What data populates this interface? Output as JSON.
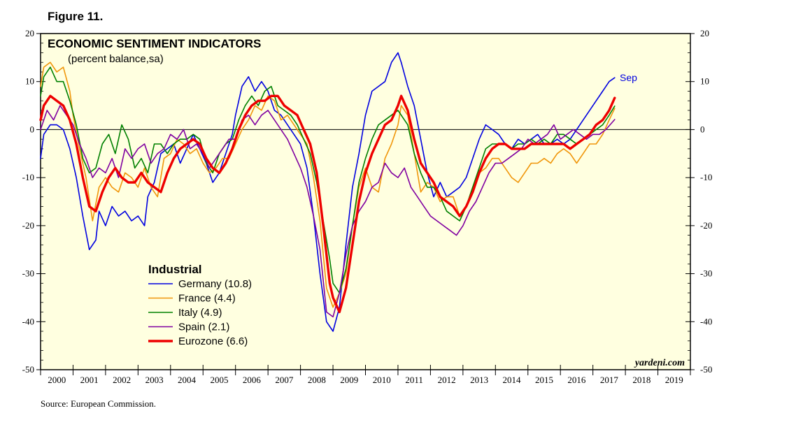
{
  "figure_label": "Figure 11.",
  "source": "Source: European Commission.",
  "chart_data": {
    "type": "line",
    "title": "ECONOMIC SENTIMENT INDICATORS",
    "subtitle": "(percent balance,sa)",
    "watermark": "yardeni.com",
    "end_label": "Sep",
    "legend_title": "Industrial",
    "legend_position": "lower-left",
    "background_color": "#ffffe0",
    "zero_line": true,
    "ylim": [
      -50,
      20
    ],
    "yticks": [
      20,
      10,
      0,
      -10,
      -20,
      -30,
      -40,
      -50
    ],
    "ytick_labels": [
      "20",
      "10",
      "0",
      "-10",
      "-20",
      "-30",
      "-40",
      "-50"
    ],
    "xlim": [
      2000,
      2020
    ],
    "xtick_labels": [
      "2000",
      "2001",
      "2002",
      "2003",
      "2004",
      "2005",
      "2006",
      "2007",
      "2008",
      "2009",
      "2010",
      "2011",
      "2012",
      "2013",
      "2014",
      "2015",
      "2016",
      "2017",
      "2018",
      "2019"
    ],
    "series": [
      {
        "name": "Germany (10.8)",
        "color": "#0000e0",
        "width": 1.6,
        "x": [
          2000.0,
          2000.1,
          2000.3,
          2000.5,
          2000.7,
          2000.9,
          2001.1,
          2001.3,
          2001.5,
          2001.7,
          2001.8,
          2002.0,
          2002.2,
          2002.4,
          2002.6,
          2002.8,
          2003.0,
          2003.2,
          2003.3,
          2003.5,
          2003.7,
          2003.9,
          2004.1,
          2004.3,
          2004.5,
          2004.7,
          2004.9,
          2005.1,
          2005.3,
          2005.5,
          2005.7,
          2005.9,
          2006.0,
          2006.2,
          2006.4,
          2006.6,
          2006.8,
          2007.0,
          2007.2,
          2007.4,
          2007.6,
          2007.8,
          2008.0,
          2008.2,
          2008.4,
          2008.6,
          2008.8,
          2009.0,
          2009.2,
          2009.4,
          2009.6,
          2009.8,
          2010.0,
          2010.2,
          2010.4,
          2010.6,
          2010.8,
          2011.0,
          2011.1,
          2011.3,
          2011.5,
          2011.7,
          2011.9,
          2012.1,
          2012.3,
          2012.5,
          2012.7,
          2012.9,
          2013.1,
          2013.3,
          2013.5,
          2013.7,
          2013.9,
          2014.1,
          2014.3,
          2014.5,
          2014.7,
          2014.9,
          2015.1,
          2015.3,
          2015.5,
          2015.7,
          2015.9,
          2016.1,
          2016.3,
          2016.5,
          2016.7,
          2016.9,
          2017.1,
          2017.3,
          2017.5,
          2017.67
        ],
        "y": [
          -6,
          -1,
          1,
          1,
          0,
          -4,
          -10,
          -18,
          -25,
          -23,
          -17,
          -20,
          -16,
          -18,
          -17,
          -19,
          -18,
          -20,
          -14,
          -11,
          -5,
          -4,
          -3,
          -7,
          -4,
          -1,
          -4,
          -7,
          -11,
          -9,
          -5,
          -1,
          3,
          9,
          11,
          8,
          10,
          8,
          4,
          3,
          1,
          -1,
          -3,
          -8,
          -18,
          -30,
          -40,
          -42,
          -37,
          -24,
          -12,
          -5,
          3,
          8,
          9,
          10,
          14,
          16,
          14,
          9,
          5,
          -2,
          -9,
          -14,
          -11,
          -14,
          -13,
          -12,
          -10,
          -6,
          -2,
          1,
          0,
          -1,
          -3,
          -4,
          -2,
          -3,
          -2,
          -1,
          -3,
          -3,
          -2,
          -3,
          -2,
          0,
          2,
          4,
          6,
          8,
          10,
          10.8
        ]
      },
      {
        "name": "France (4.4)",
        "color": "#f0960a",
        "width": 1.6,
        "x": [
          2000.0,
          2000.1,
          2000.3,
          2000.5,
          2000.7,
          2000.9,
          2001.0,
          2001.2,
          2001.4,
          2001.6,
          2001.8,
          2002.0,
          2002.2,
          2002.4,
          2002.6,
          2002.8,
          2003.0,
          2003.2,
          2003.4,
          2003.6,
          2003.8,
          2004.0,
          2004.2,
          2004.4,
          2004.6,
          2004.8,
          2005.0,
          2005.2,
          2005.4,
          2005.6,
          2005.8,
          2006.0,
          2006.2,
          2006.4,
          2006.6,
          2006.8,
          2007.0,
          2007.2,
          2007.4,
          2007.6,
          2007.8,
          2008.0,
          2008.2,
          2008.4,
          2008.6,
          2008.8,
          2009.0,
          2009.2,
          2009.4,
          2009.6,
          2009.8,
          2010.0,
          2010.2,
          2010.4,
          2010.6,
          2010.8,
          2011.0,
          2011.1,
          2011.3,
          2011.5,
          2011.7,
          2011.9,
          2012.1,
          2012.3,
          2012.5,
          2012.7,
          2012.9,
          2013.1,
          2013.3,
          2013.5,
          2013.7,
          2013.9,
          2014.1,
          2014.3,
          2014.5,
          2014.7,
          2014.9,
          2015.1,
          2015.3,
          2015.5,
          2015.7,
          2015.9,
          2016.1,
          2016.3,
          2016.5,
          2016.7,
          2016.9,
          2017.1,
          2017.3,
          2017.5,
          2017.67
        ],
        "y": [
          9,
          13,
          14,
          12,
          13,
          8,
          3,
          -4,
          -10,
          -19,
          -12,
          -10,
          -12,
          -13,
          -9,
          -10,
          -12,
          -8,
          -12,
          -14,
          -6,
          -5,
          -2,
          -3,
          -5,
          -4,
          -7,
          -9,
          -8,
          -6,
          -6,
          -3,
          0,
          2,
          5,
          4,
          7,
          6,
          2,
          3,
          1,
          -1,
          -3,
          -10,
          -19,
          -33,
          -37,
          -34,
          -30,
          -20,
          -12,
          -8,
          -12,
          -13,
          -6,
          -3,
          1,
          5,
          3,
          -5,
          -13,
          -11,
          -12,
          -15,
          -14,
          -14,
          -18,
          -16,
          -12,
          -9,
          -8,
          -6,
          -6,
          -8,
          -10,
          -11,
          -9,
          -7,
          -7,
          -6,
          -7,
          -5,
          -4,
          -5,
          -7,
          -5,
          -3,
          -3,
          -1,
          2,
          4.4
        ]
      },
      {
        "name": "Italy (4.9)",
        "color": "#008000",
        "width": 1.6,
        "x": [
          2000.0,
          2000.1,
          2000.3,
          2000.5,
          2000.7,
          2000.9,
          2001.1,
          2001.3,
          2001.5,
          2001.7,
          2001.9,
          2002.1,
          2002.3,
          2002.5,
          2002.7,
          2002.9,
          2003.1,
          2003.3,
          2003.5,
          2003.7,
          2003.9,
          2004.1,
          2004.3,
          2004.5,
          2004.7,
          2004.9,
          2005.1,
          2005.3,
          2005.5,
          2005.7,
          2005.9,
          2006.1,
          2006.3,
          2006.5,
          2006.7,
          2006.9,
          2007.1,
          2007.3,
          2007.5,
          2007.7,
          2007.9,
          2008.1,
          2008.3,
          2008.5,
          2008.7,
          2008.9,
          2009.0,
          2009.2,
          2009.4,
          2009.6,
          2009.8,
          2010.0,
          2010.2,
          2010.4,
          2010.6,
          2010.8,
          2011.0,
          2011.1,
          2011.3,
          2011.5,
          2011.7,
          2011.9,
          2012.1,
          2012.3,
          2012.5,
          2012.7,
          2012.9,
          2013.1,
          2013.3,
          2013.5,
          2013.7,
          2013.9,
          2014.1,
          2014.3,
          2014.5,
          2014.7,
          2014.9,
          2015.1,
          2015.3,
          2015.5,
          2015.7,
          2015.9,
          2016.1,
          2016.3,
          2016.5,
          2016.7,
          2016.9,
          2017.1,
          2017.3,
          2017.5,
          2017.67
        ],
        "y": [
          7,
          11,
          13,
          10,
          10,
          6,
          1,
          -6,
          -9,
          -8,
          -3,
          -1,
          -5,
          1,
          -2,
          -8,
          -6,
          -9,
          -3,
          -3,
          -5,
          -3,
          -2,
          -2,
          -1,
          -2,
          -7,
          -9,
          -5,
          -3,
          -2,
          2,
          5,
          7,
          5,
          8,
          9,
          5,
          4,
          3,
          1,
          -2,
          -5,
          -11,
          -19,
          -27,
          -32,
          -34,
          -29,
          -20,
          -11,
          -6,
          -2,
          1,
          2,
          3,
          4,
          3,
          1,
          -5,
          -9,
          -12,
          -12,
          -14,
          -17,
          -18,
          -19,
          -16,
          -12,
          -8,
          -4,
          -3,
          -3,
          -3,
          -4,
          -3,
          -3,
          -2,
          -3,
          -2,
          -3,
          -1,
          -1,
          -2,
          -3,
          -2,
          -1,
          0,
          1,
          3,
          4.9
        ]
      },
      {
        "name": "Spain (2.1)",
        "color": "#8000a0",
        "width": 1.6,
        "x": [
          2000.0,
          2000.2,
          2000.4,
          2000.6,
          2000.8,
          2001.0,
          2001.2,
          2001.4,
          2001.6,
          2001.8,
          2002.0,
          2002.2,
          2002.4,
          2002.6,
          2002.8,
          2003.0,
          2003.2,
          2003.4,
          2003.6,
          2003.8,
          2004.0,
          2004.2,
          2004.4,
          2004.6,
          2004.8,
          2005.0,
          2005.2,
          2005.4,
          2005.6,
          2005.8,
          2006.0,
          2006.2,
          2006.4,
          2006.6,
          2006.8,
          2007.0,
          2007.2,
          2007.4,
          2007.6,
          2007.8,
          2008.0,
          2008.2,
          2008.4,
          2008.6,
          2008.8,
          2009.0,
          2009.2,
          2009.4,
          2009.6,
          2009.8,
          2010.0,
          2010.2,
          2010.4,
          2010.6,
          2010.8,
          2011.0,
          2011.2,
          2011.4,
          2011.6,
          2011.8,
          2012.0,
          2012.2,
          2012.4,
          2012.6,
          2012.8,
          2013.0,
          2013.2,
          2013.4,
          2013.6,
          2013.8,
          2014.0,
          2014.2,
          2014.4,
          2014.6,
          2014.8,
          2015.0,
          2015.2,
          2015.4,
          2015.6,
          2015.8,
          2016.0,
          2016.2,
          2016.4,
          2016.6,
          2016.8,
          2017.0,
          2017.2,
          2017.4,
          2017.67
        ],
        "y": [
          0,
          4,
          2,
          5,
          3,
          1,
          -3,
          -6,
          -10,
          -8,
          -9,
          -6,
          -10,
          -4,
          -6,
          -4,
          -3,
          -7,
          -5,
          -4,
          -1,
          -2,
          0,
          -4,
          -3,
          -5,
          -8,
          -6,
          -4,
          -2,
          -2,
          2,
          3,
          1,
          3,
          4,
          2,
          0,
          -2,
          -5,
          -8,
          -12,
          -18,
          -25,
          -38,
          -39,
          -34,
          -26,
          -20,
          -17,
          -15,
          -12,
          -11,
          -7,
          -9,
          -10,
          -8,
          -12,
          -14,
          -16,
          -18,
          -19,
          -20,
          -21,
          -22,
          -20,
          -17,
          -15,
          -12,
          -9,
          -7,
          -7,
          -6,
          -5,
          -4,
          -2,
          -3,
          -2,
          -1,
          1,
          -2,
          -1,
          0,
          -1,
          -2,
          -1,
          -1,
          0,
          2.1
        ]
      },
      {
        "name": "Eurozone (6.6)",
        "color": "#ee0000",
        "width": 3.4,
        "x": [
          2000.0,
          2000.1,
          2000.3,
          2000.5,
          2000.7,
          2000.9,
          2001.1,
          2001.3,
          2001.5,
          2001.7,
          2001.9,
          2002.1,
          2002.3,
          2002.5,
          2002.7,
          2002.9,
          2003.1,
          2003.3,
          2003.5,
          2003.7,
          2003.9,
          2004.1,
          2004.3,
          2004.5,
          2004.7,
          2004.9,
          2005.1,
          2005.3,
          2005.5,
          2005.7,
          2005.9,
          2006.1,
          2006.3,
          2006.5,
          2006.7,
          2006.9,
          2007.1,
          2007.3,
          2007.5,
          2007.7,
          2007.9,
          2008.1,
          2008.3,
          2008.5,
          2008.7,
          2008.9,
          2009.0,
          2009.2,
          2009.4,
          2009.6,
          2009.8,
          2010.0,
          2010.2,
          2010.4,
          2010.6,
          2010.8,
          2011.0,
          2011.1,
          2011.3,
          2011.5,
          2011.7,
          2011.9,
          2012.1,
          2012.3,
          2012.5,
          2012.7,
          2012.9,
          2013.1,
          2013.3,
          2013.5,
          2013.7,
          2013.9,
          2014.1,
          2014.3,
          2014.5,
          2014.7,
          2014.9,
          2015.1,
          2015.3,
          2015.5,
          2015.7,
          2015.9,
          2016.1,
          2016.3,
          2016.5,
          2016.7,
          2016.9,
          2017.1,
          2017.3,
          2017.5,
          2017.67
        ],
        "y": [
          2,
          5,
          7,
          6,
          5,
          2,
          -3,
          -10,
          -16,
          -17,
          -13,
          -10,
          -8,
          -10,
          -11,
          -11,
          -9,
          -11,
          -12,
          -13,
          -9,
          -6,
          -4,
          -3,
          -2,
          -3,
          -6,
          -8,
          -9,
          -7,
          -4,
          0,
          3,
          5,
          6,
          6,
          7,
          7,
          5,
          4,
          3,
          0,
          -3,
          -9,
          -20,
          -32,
          -35,
          -38,
          -33,
          -24,
          -15,
          -9,
          -5,
          -2,
          1,
          2,
          5,
          7,
          4,
          -2,
          -7,
          -9,
          -11,
          -14,
          -15,
          -16,
          -18,
          -16,
          -13,
          -9,
          -6,
          -4,
          -3,
          -3,
          -4,
          -4,
          -4,
          -3,
          -3,
          -3,
          -3,
          -3,
          -3,
          -4,
          -3,
          -2,
          -1,
          1,
          2,
          4,
          6.6
        ]
      }
    ]
  }
}
